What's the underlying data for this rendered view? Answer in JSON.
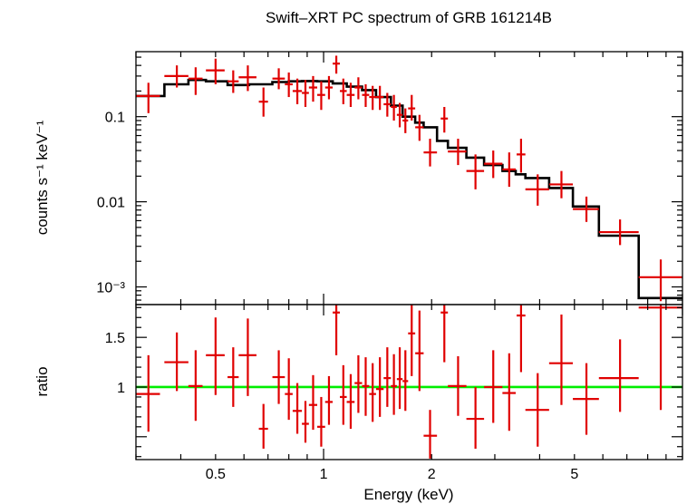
{
  "chart_data": [
    {
      "type": "scatter",
      "panel": "spectrum",
      "title": "Swift–XRT PC spectrum of GRB 161214B",
      "ylabel": "counts s⁻¹ keV⁻¹",
      "xlabel": "",
      "x_scale": "log",
      "y_scale": "log",
      "xlim": [
        0.3,
        10
      ],
      "ylim": [
        0.00062,
        0.58
      ],
      "yticks": [
        {
          "value": 0.1,
          "label": "0.1"
        },
        {
          "value": 0.01,
          "label": "0.01"
        },
        {
          "value": 0.001,
          "label": "10⁻³"
        }
      ],
      "series": [
        {
          "kind": "data_points",
          "color": "#e00000",
          "points": [
            {
              "x": 0.325,
              "x_lo": 0.3,
              "x_hi": 0.35,
              "y": 0.175,
              "y_lo": 0.11,
              "y_hi": 0.25
            },
            {
              "x": 0.39,
              "x_lo": 0.36,
              "x_hi": 0.42,
              "y": 0.3,
              "y_lo": 0.22,
              "y_hi": 0.4
            },
            {
              "x": 0.44,
              "x_lo": 0.42,
              "x_hi": 0.46,
              "y": 0.28,
              "y_lo": 0.18,
              "y_hi": 0.38
            },
            {
              "x": 0.5,
              "x_lo": 0.47,
              "x_hi": 0.53,
              "y": 0.35,
              "y_lo": 0.24,
              "y_hi": 0.48
            },
            {
              "x": 0.56,
              "x_lo": 0.54,
              "x_hi": 0.58,
              "y": 0.26,
              "y_lo": 0.19,
              "y_hi": 0.35
            },
            {
              "x": 0.615,
              "x_lo": 0.58,
              "x_hi": 0.65,
              "y": 0.29,
              "y_lo": 0.2,
              "y_hi": 0.4
            },
            {
              "x": 0.68,
              "x_lo": 0.66,
              "x_hi": 0.7,
              "y": 0.15,
              "y_lo": 0.1,
              "y_hi": 0.22
            },
            {
              "x": 0.75,
              "x_lo": 0.72,
              "x_hi": 0.78,
              "y": 0.28,
              "y_lo": 0.21,
              "y_hi": 0.37
            },
            {
              "x": 0.8,
              "x_lo": 0.78,
              "x_hi": 0.82,
              "y": 0.24,
              "y_lo": 0.17,
              "y_hi": 0.33
            },
            {
              "x": 0.845,
              "x_lo": 0.82,
              "x_hi": 0.87,
              "y": 0.2,
              "y_lo": 0.14,
              "y_hi": 0.28
            },
            {
              "x": 0.89,
              "x_lo": 0.87,
              "x_hi": 0.91,
              "y": 0.19,
              "y_lo": 0.13,
              "y_hi": 0.27
            },
            {
              "x": 0.935,
              "x_lo": 0.91,
              "x_hi": 0.96,
              "y": 0.22,
              "y_lo": 0.15,
              "y_hi": 0.3
            },
            {
              "x": 0.985,
              "x_lo": 0.96,
              "x_hi": 1.01,
              "y": 0.18,
              "y_lo": 0.12,
              "y_hi": 0.26
            },
            {
              "x": 1.035,
              "x_lo": 1.01,
              "x_hi": 1.06,
              "y": 0.22,
              "y_lo": 0.16,
              "y_hi": 0.3
            },
            {
              "x": 1.085,
              "x_lo": 1.06,
              "x_hi": 1.11,
              "y": 0.42,
              "y_lo": 0.32,
              "y_hi": 0.52
            },
            {
              "x": 1.135,
              "x_lo": 1.11,
              "x_hi": 1.16,
              "y": 0.2,
              "y_lo": 0.14,
              "y_hi": 0.28
            },
            {
              "x": 1.19,
              "x_lo": 1.16,
              "x_hi": 1.22,
              "y": 0.18,
              "y_lo": 0.13,
              "y_hi": 0.25
            },
            {
              "x": 1.25,
              "x_lo": 1.22,
              "x_hi": 1.28,
              "y": 0.22,
              "y_lo": 0.16,
              "y_hi": 0.29
            },
            {
              "x": 1.31,
              "x_lo": 1.28,
              "x_hi": 1.34,
              "y": 0.18,
              "y_lo": 0.13,
              "y_hi": 0.24
            },
            {
              "x": 1.37,
              "x_lo": 1.34,
              "x_hi": 1.4,
              "y": 0.17,
              "y_lo": 0.12,
              "y_hi": 0.23
            },
            {
              "x": 1.435,
              "x_lo": 1.4,
              "x_hi": 1.47,
              "y": 0.17,
              "y_lo": 0.12,
              "y_hi": 0.23
            },
            {
              "x": 1.505,
              "x_lo": 1.47,
              "x_hi": 1.54,
              "y": 0.14,
              "y_lo": 0.1,
              "y_hi": 0.19
            },
            {
              "x": 1.57,
              "x_lo": 1.54,
              "x_hi": 1.6,
              "y": 0.13,
              "y_lo": 0.09,
              "y_hi": 0.18
            },
            {
              "x": 1.63,
              "x_lo": 1.6,
              "x_hi": 1.66,
              "y": 0.105,
              "y_lo": 0.075,
              "y_hi": 0.145
            },
            {
              "x": 1.69,
              "x_lo": 1.66,
              "x_hi": 1.72,
              "y": 0.09,
              "y_lo": 0.064,
              "y_hi": 0.125
            },
            {
              "x": 1.76,
              "x_lo": 1.72,
              "x_hi": 1.8,
              "y": 0.125,
              "y_lo": 0.09,
              "y_hi": 0.18
            },
            {
              "x": 1.85,
              "x_lo": 1.8,
              "x_hi": 1.9,
              "y": 0.075,
              "y_lo": 0.052,
              "y_hi": 0.105
            },
            {
              "x": 1.98,
              "x_lo": 1.9,
              "x_hi": 2.07,
              "y": 0.038,
              "y_lo": 0.026,
              "y_hi": 0.055
            },
            {
              "x": 2.17,
              "x_lo": 2.12,
              "x_hi": 2.22,
              "y": 0.095,
              "y_lo": 0.065,
              "y_hi": 0.13
            },
            {
              "x": 2.37,
              "x_lo": 2.22,
              "x_hi": 2.5,
              "y": 0.039,
              "y_lo": 0.027,
              "y_hi": 0.055
            },
            {
              "x": 2.65,
              "x_lo": 2.5,
              "x_hi": 2.8,
              "y": 0.023,
              "y_lo": 0.014,
              "y_hi": 0.036
            },
            {
              "x": 2.97,
              "x_lo": 2.8,
              "x_hi": 3.15,
              "y": 0.028,
              "y_lo": 0.019,
              "y_hi": 0.04
            },
            {
              "x": 3.29,
              "x_lo": 3.15,
              "x_hi": 3.43,
              "y": 0.024,
              "y_lo": 0.015,
              "y_hi": 0.038
            },
            {
              "x": 3.55,
              "x_lo": 3.45,
              "x_hi": 3.65,
              "y": 0.036,
              "y_lo": 0.022,
              "y_hi": 0.055
            },
            {
              "x": 3.95,
              "x_lo": 3.65,
              "x_hi": 4.25,
              "y": 0.014,
              "y_lo": 0.009,
              "y_hi": 0.021
            },
            {
              "x": 4.6,
              "x_lo": 4.25,
              "x_hi": 4.95,
              "y": 0.016,
              "y_lo": 0.011,
              "y_hi": 0.023
            },
            {
              "x": 5.4,
              "x_lo": 4.95,
              "x_hi": 5.85,
              "y": 0.0082,
              "y_lo": 0.0058,
              "y_hi": 0.0115
            },
            {
              "x": 6.7,
              "x_lo": 5.85,
              "x_hi": 7.55,
              "y": 0.0044,
              "y_lo": 0.0031,
              "y_hi": 0.0062
            },
            {
              "x": 8.7,
              "x_lo": 7.55,
              "x_hi": 10.0,
              "y": 0.0013,
              "y_lo": 0.00068,
              "y_hi": 0.0021
            }
          ]
        },
        {
          "kind": "model_step",
          "color": "#000000",
          "edges": [
            0.3,
            0.36,
            0.42,
            0.47,
            0.54,
            0.62,
            0.72,
            0.8,
            0.87,
            0.96,
            1.06,
            1.16,
            1.28,
            1.4,
            1.54,
            1.66,
            1.8,
            1.9,
            2.07,
            2.22,
            2.5,
            2.8,
            3.15,
            3.43,
            3.65,
            4.25,
            4.95,
            5.85,
            7.55,
            10.0
          ],
          "values": [
            0.175,
            0.24,
            0.27,
            0.26,
            0.235,
            0.24,
            0.255,
            0.26,
            0.262,
            0.26,
            0.245,
            0.225,
            0.205,
            0.17,
            0.135,
            0.1,
            0.085,
            0.075,
            0.052,
            0.043,
            0.033,
            0.027,
            0.023,
            0.021,
            0.019,
            0.0145,
            0.0088,
            0.004,
            0.00074
          ]
        }
      ]
    },
    {
      "type": "scatter",
      "panel": "ratio",
      "ylabel": "ratio",
      "xlabel": "Energy (keV)",
      "x_scale": "log",
      "xlim": [
        0.3,
        10
      ],
      "ylim": [
        0.27,
        1.83
      ],
      "xticks": [
        {
          "value": 0.5,
          "label": "0.5"
        },
        {
          "value": 1,
          "label": "1"
        },
        {
          "value": 2,
          "label": "2"
        },
        {
          "value": 5,
          "label": "5"
        }
      ],
      "yticks": [
        {
          "value": 1,
          "label": "1"
        },
        {
          "value": 1.5,
          "label": "1.5"
        }
      ],
      "reference_line": {
        "y": 1.0,
        "color": "#00ee00"
      },
      "series": [
        {
          "kind": "data_points",
          "color": "#e00000",
          "points": [
            {
              "x": 0.325,
              "x_lo": 0.3,
              "x_hi": 0.35,
              "y": 0.93,
              "y_lo": 0.55,
              "y_hi": 1.32
            },
            {
              "x": 0.39,
              "x_lo": 0.36,
              "x_hi": 0.42,
              "y": 1.25,
              "y_lo": 0.96,
              "y_hi": 1.55
            },
            {
              "x": 0.44,
              "x_lo": 0.42,
              "x_hi": 0.46,
              "y": 1.01,
              "y_lo": 0.66,
              "y_hi": 1.37
            },
            {
              "x": 0.5,
              "x_lo": 0.47,
              "x_hi": 0.53,
              "y": 1.32,
              "y_lo": 0.92,
              "y_hi": 1.7
            },
            {
              "x": 0.56,
              "x_lo": 0.54,
              "x_hi": 0.58,
              "y": 1.1,
              "y_lo": 0.8,
              "y_hi": 1.4
            },
            {
              "x": 0.615,
              "x_lo": 0.58,
              "x_hi": 0.65,
              "y": 1.32,
              "y_lo": 0.91,
              "y_hi": 1.69
            },
            {
              "x": 0.68,
              "x_lo": 0.66,
              "x_hi": 0.7,
              "y": 0.58,
              "y_lo": 0.38,
              "y_hi": 0.83
            },
            {
              "x": 0.75,
              "x_lo": 0.72,
              "x_hi": 0.78,
              "y": 1.1,
              "y_lo": 0.83,
              "y_hi": 1.37
            },
            {
              "x": 0.8,
              "x_lo": 0.78,
              "x_hi": 0.82,
              "y": 0.93,
              "y_lo": 0.67,
              "y_hi": 1.29
            },
            {
              "x": 0.845,
              "x_lo": 0.82,
              "x_hi": 0.87,
              "y": 0.76,
              "y_lo": 0.53,
              "y_hi": 1.04
            },
            {
              "x": 0.89,
              "x_lo": 0.87,
              "x_hi": 0.91,
              "y": 0.63,
              "y_lo": 0.44,
              "y_hi": 0.86
            },
            {
              "x": 0.935,
              "x_lo": 0.91,
              "x_hi": 0.96,
              "y": 0.82,
              "y_lo": 0.57,
              "y_hi": 1.12
            },
            {
              "x": 0.985,
              "x_lo": 0.96,
              "x_hi": 1.01,
              "y": 0.6,
              "y_lo": 0.4,
              "y_hi": 0.9
            },
            {
              "x": 1.035,
              "x_lo": 1.01,
              "x_hi": 1.06,
              "y": 0.85,
              "y_lo": 0.62,
              "y_hi": 1.11
            },
            {
              "x": 1.085,
              "x_lo": 1.06,
              "x_hi": 1.11,
              "y": 1.75,
              "y_lo": 1.32,
              "y_hi": 1.83
            },
            {
              "x": 1.135,
              "x_lo": 1.11,
              "x_hi": 1.16,
              "y": 0.9,
              "y_lo": 0.62,
              "y_hi": 1.22
            },
            {
              "x": 1.19,
              "x_lo": 1.16,
              "x_hi": 1.22,
              "y": 0.85,
              "y_lo": 0.58,
              "y_hi": 1.13
            },
            {
              "x": 1.25,
              "x_lo": 1.22,
              "x_hi": 1.28,
              "y": 1.04,
              "y_lo": 0.74,
              "y_hi": 1.32
            },
            {
              "x": 1.31,
              "x_lo": 1.28,
              "x_hi": 1.34,
              "y": 1.01,
              "y_lo": 0.71,
              "y_hi": 1.3
            },
            {
              "x": 1.37,
              "x_lo": 1.34,
              "x_hi": 1.4,
              "y": 0.93,
              "y_lo": 0.65,
              "y_hi": 1.24
            },
            {
              "x": 1.435,
              "x_lo": 1.4,
              "x_hi": 1.47,
              "y": 0.98,
              "y_lo": 0.7,
              "y_hi": 1.3
            },
            {
              "x": 1.505,
              "x_lo": 1.47,
              "x_hi": 1.54,
              "y": 1.09,
              "y_lo": 0.8,
              "y_hi": 1.4
            },
            {
              "x": 1.57,
              "x_lo": 1.54,
              "x_hi": 1.6,
              "y": 1.01,
              "y_lo": 0.72,
              "y_hi": 1.33
            },
            {
              "x": 1.63,
              "x_lo": 1.6,
              "x_hi": 1.66,
              "y": 1.08,
              "y_lo": 0.78,
              "y_hi": 1.4
            },
            {
              "x": 1.69,
              "x_lo": 1.66,
              "x_hi": 1.72,
              "y": 1.06,
              "y_lo": 0.76,
              "y_hi": 1.37
            },
            {
              "x": 1.76,
              "x_lo": 1.72,
              "x_hi": 1.8,
              "y": 1.54,
              "y_lo": 1.11,
              "y_hi": 1.83
            },
            {
              "x": 1.85,
              "x_lo": 1.8,
              "x_hi": 1.9,
              "y": 1.34,
              "y_lo": 0.96,
              "y_hi": 1.77
            },
            {
              "x": 1.98,
              "x_lo": 1.9,
              "x_hi": 2.07,
              "y": 0.51,
              "y_lo": 0.28,
              "y_hi": 0.77
            },
            {
              "x": 2.17,
              "x_lo": 2.12,
              "x_hi": 2.22,
              "y": 1.75,
              "y_lo": 1.25,
              "y_hi": 1.83
            },
            {
              "x": 2.37,
              "x_lo": 2.22,
              "x_hi": 2.5,
              "y": 1.01,
              "y_lo": 0.71,
              "y_hi": 1.31
            },
            {
              "x": 2.65,
              "x_lo": 2.5,
              "x_hi": 2.8,
              "y": 0.68,
              "y_lo": 0.38,
              "y_hi": 1.0
            },
            {
              "x": 2.97,
              "x_lo": 2.8,
              "x_hi": 3.15,
              "y": 1.0,
              "y_lo": 0.64,
              "y_hi": 1.37
            },
            {
              "x": 3.29,
              "x_lo": 3.15,
              "x_hi": 3.43,
              "y": 0.94,
              "y_lo": 0.56,
              "y_hi": 1.34
            },
            {
              "x": 3.55,
              "x_lo": 3.45,
              "x_hi": 3.65,
              "y": 1.72,
              "y_lo": 1.15,
              "y_hi": 1.83
            },
            {
              "x": 3.95,
              "x_lo": 3.65,
              "x_hi": 4.25,
              "y": 0.77,
              "y_lo": 0.4,
              "y_hi": 1.14
            },
            {
              "x": 4.6,
              "x_lo": 4.25,
              "x_hi": 4.95,
              "y": 1.24,
              "y_lo": 0.82,
              "y_hi": 1.73
            },
            {
              "x": 5.4,
              "x_lo": 4.95,
              "x_hi": 5.85,
              "y": 0.88,
              "y_lo": 0.52,
              "y_hi": 1.24
            },
            {
              "x": 6.7,
              "x_lo": 5.85,
              "x_hi": 7.55,
              "y": 1.09,
              "y_lo": 0.75,
              "y_hi": 1.48
            },
            {
              "x": 8.7,
              "x_lo": 7.55,
              "x_hi": 10.0,
              "y": 1.8,
              "y_lo": 0.77,
              "y_hi": 1.83
            }
          ]
        }
      ]
    }
  ]
}
